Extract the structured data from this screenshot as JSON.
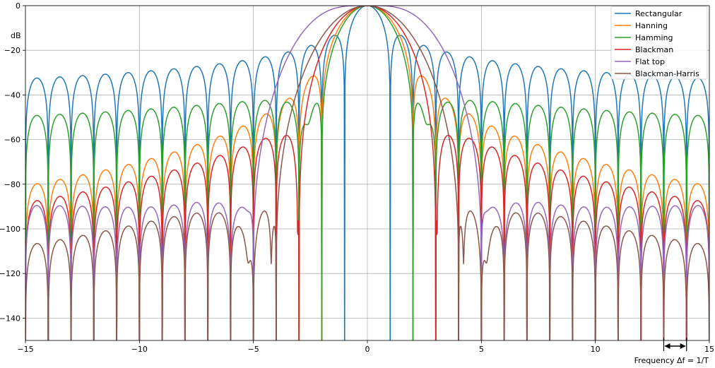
{
  "chart_data": {
    "type": "line",
    "title": "",
    "xlabel": "Frequency Δf = 1/T",
    "ylabel": "dB",
    "xlim": [
      -15,
      15
    ],
    "ylim": [
      -150,
      0
    ],
    "grid": true,
    "legend_position": "top-right",
    "x_ticks": [
      -15,
      -10,
      -5,
      0,
      5,
      10,
      15
    ],
    "x_tick_labels": [
      "−15",
      "−10",
      "−5",
      "0",
      "5",
      "10",
      "15"
    ],
    "y_ticks": [
      0,
      -20,
      -40,
      -60,
      -80,
      -100,
      -120,
      -140
    ],
    "y_tick_labels": [
      "0",
      "−20",
      "−40",
      "−60",
      "−80",
      "−100",
      "−120",
      "−140"
    ],
    "annotation": {
      "type": "double-arrow",
      "from_x": 13,
      "to_x": 14
    },
    "series": [
      {
        "name": "Rectangular",
        "color": "#1f77b4",
        "window": "rect"
      },
      {
        "name": "Hanning",
        "color": "#ff7f0e",
        "window": "hann"
      },
      {
        "name": "Hamming",
        "color": "#2ca02c",
        "window": "hamming"
      },
      {
        "name": "Blackman",
        "color": "#d62728",
        "window": "blackman"
      },
      {
        "name": "Flat top",
        "color": "#9467bd",
        "window": "flattop"
      },
      {
        "name": "Blackman-Harris",
        "color": "#8c564b",
        "window": "bh"
      }
    ]
  }
}
